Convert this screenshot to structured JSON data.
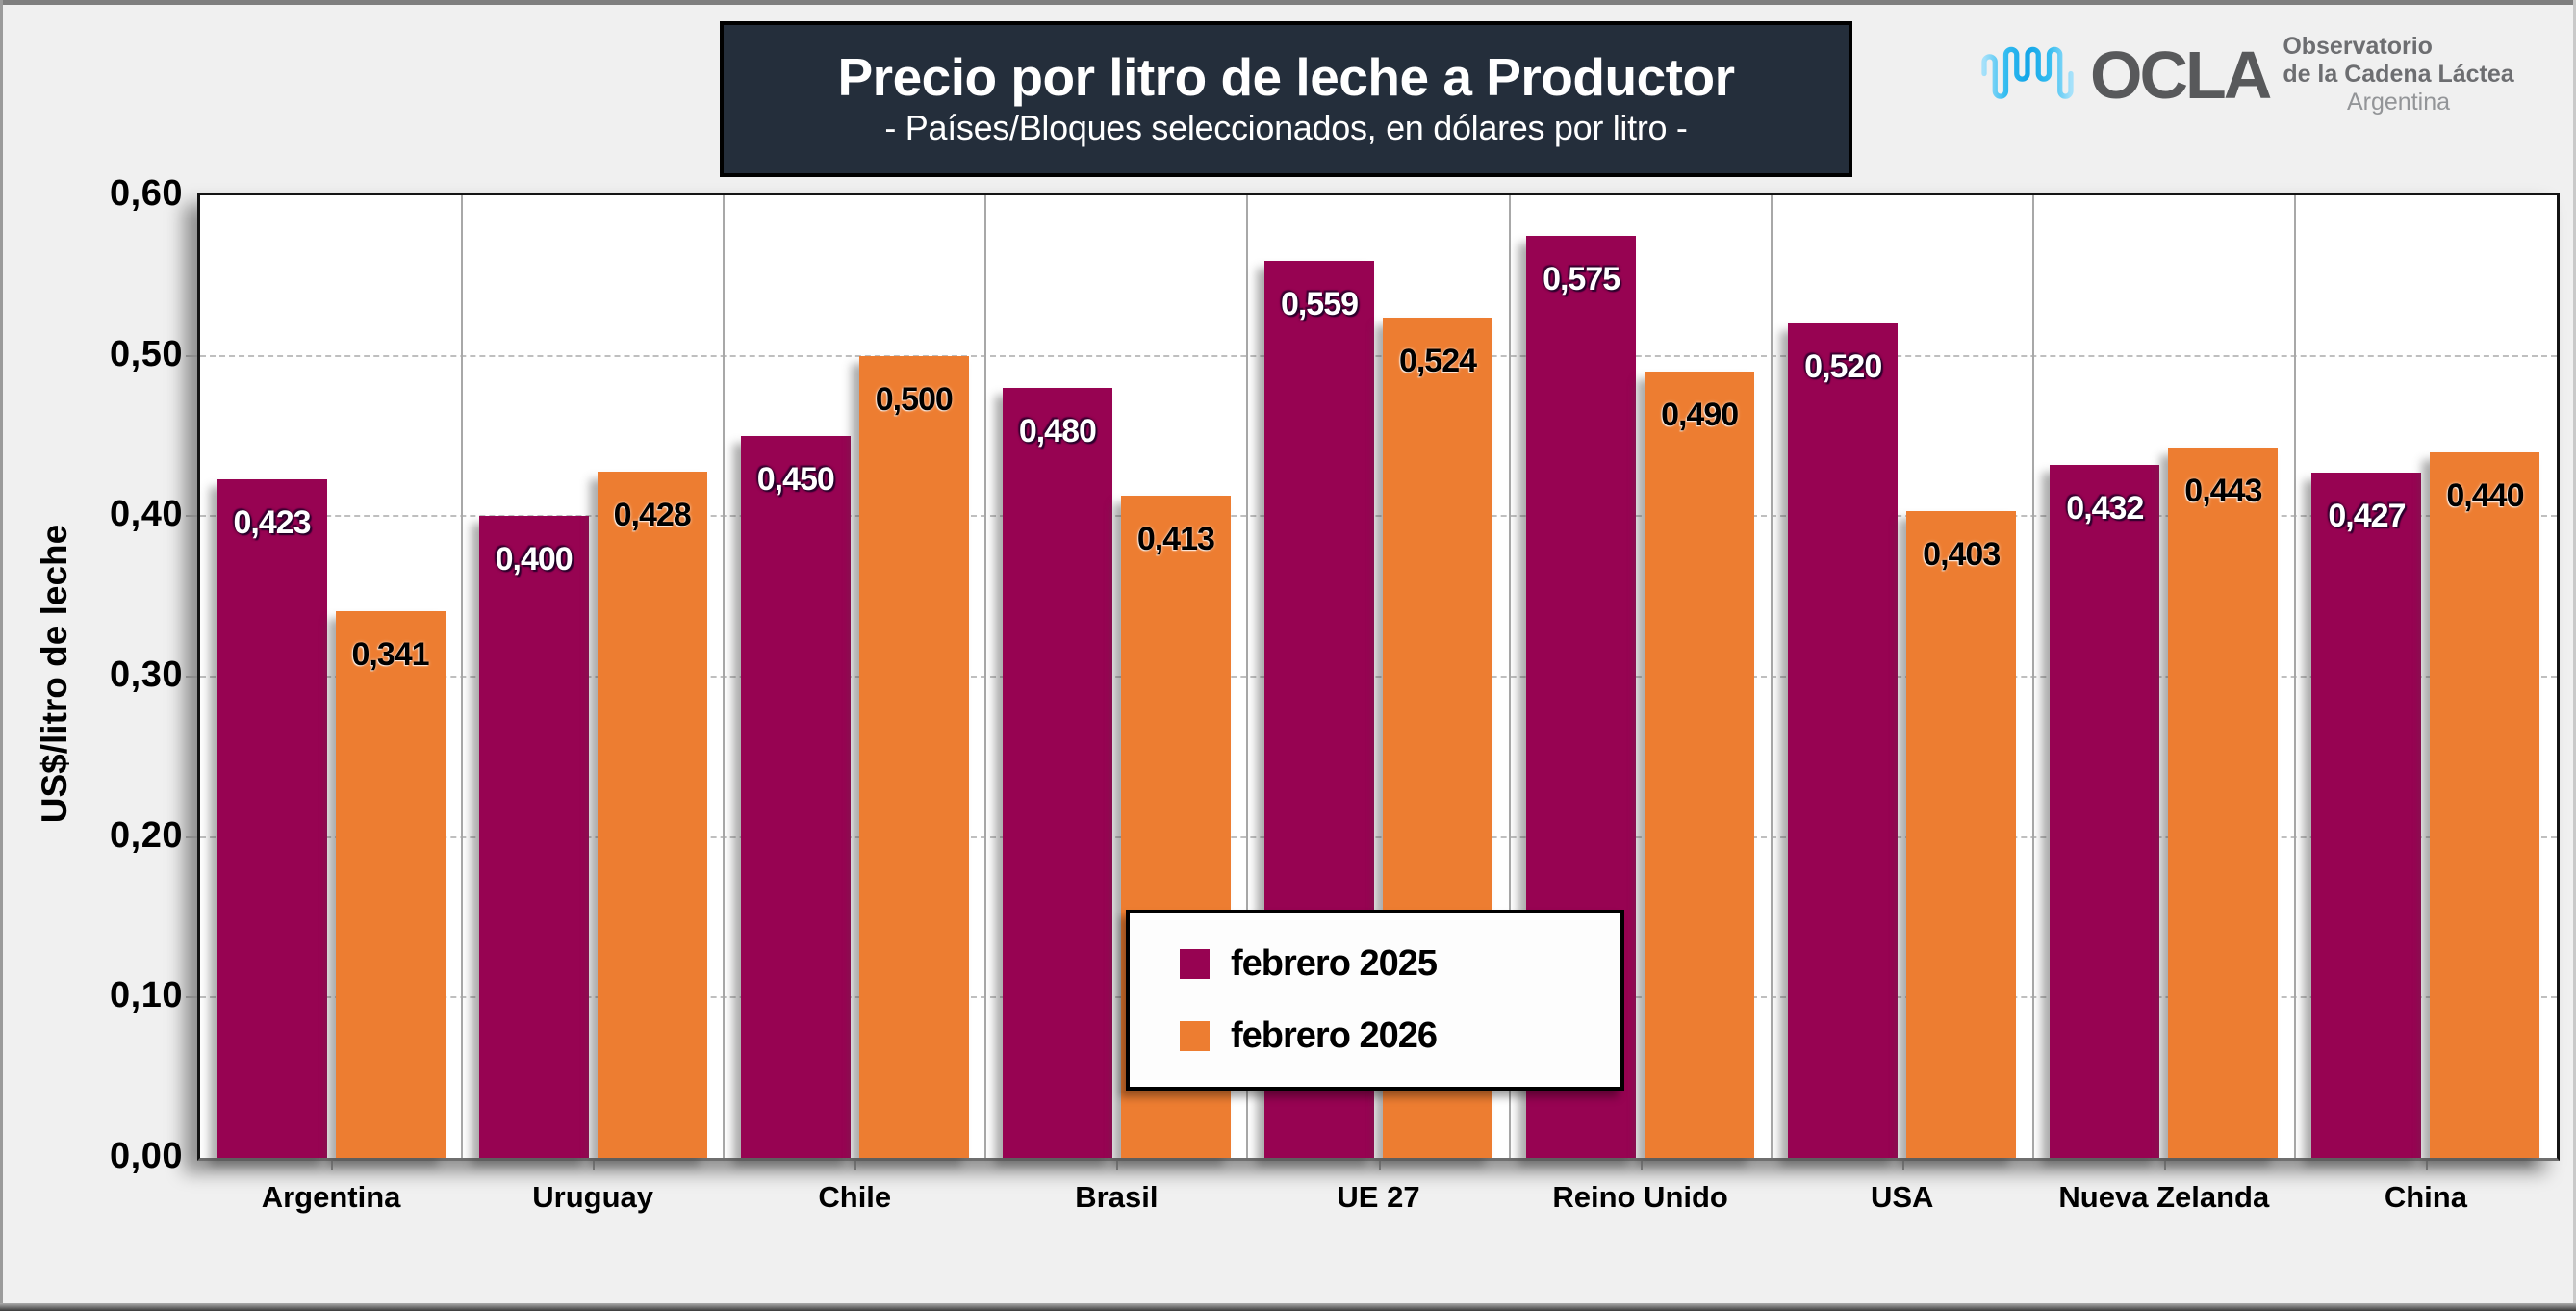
{
  "header": {
    "title": "Precio por litro de leche a Productor",
    "subtitle": "- Países/Bloques seleccionados, en dólares por litro -",
    "box_bg": "#242E3B"
  },
  "logo": {
    "wave_icon": "milk-wave-icon",
    "acronym": "OCLA",
    "org_line1": "Observatorio",
    "org_line2": "de la Cadena Láctea",
    "org_line3": "Argentina"
  },
  "y_axis": {
    "title": "US$/litro de leche",
    "tick_labels": [
      "0,60",
      "0,50",
      "0,40",
      "0,30",
      "0,20",
      "0,10",
      "0,00"
    ]
  },
  "legend": {
    "items": [
      {
        "label": "febrero 2025",
        "color": "#970352"
      },
      {
        "label": "febrero 2026",
        "color": "#ED7D31"
      }
    ]
  },
  "chart_data": {
    "type": "bar",
    "title": "Precio por litro de leche a Productor",
    "subtitle": "- Países/Bloques seleccionados, en dólares por litro -",
    "ylabel": "US$/litro de leche",
    "ylim": [
      0,
      0.6
    ],
    "ytick_step": 0.1,
    "decimal_separator": ",",
    "grid": "horizontal dashed",
    "legend_position": "inside bottom-center",
    "categories": [
      "Argentina",
      "Uruguay",
      "Chile",
      "Brasil",
      "UE 27",
      "Reino Unido",
      "USA",
      "Nueva Zelanda",
      "China"
    ],
    "series": [
      {
        "name": "febrero 2025",
        "color": "#970352",
        "values": [
          0.423,
          0.4,
          0.45,
          0.48,
          0.559,
          0.575,
          0.52,
          0.432,
          0.427
        ],
        "value_labels": [
          "0,423",
          "0,400",
          "0,450",
          "0,480",
          "0,559",
          "0,575",
          "0,520",
          "0,432",
          "0,427"
        ]
      },
      {
        "name": "febrero 2026",
        "color": "#ED7D31",
        "values": [
          0.341,
          0.428,
          0.5,
          0.413,
          0.524,
          0.49,
          0.403,
          0.443,
          0.44
        ],
        "value_labels": [
          "0,341",
          "0,428",
          "0,500",
          "0,413",
          "0,524",
          "0,490",
          "0,403",
          "0,443",
          "0,440"
        ]
      }
    ]
  }
}
